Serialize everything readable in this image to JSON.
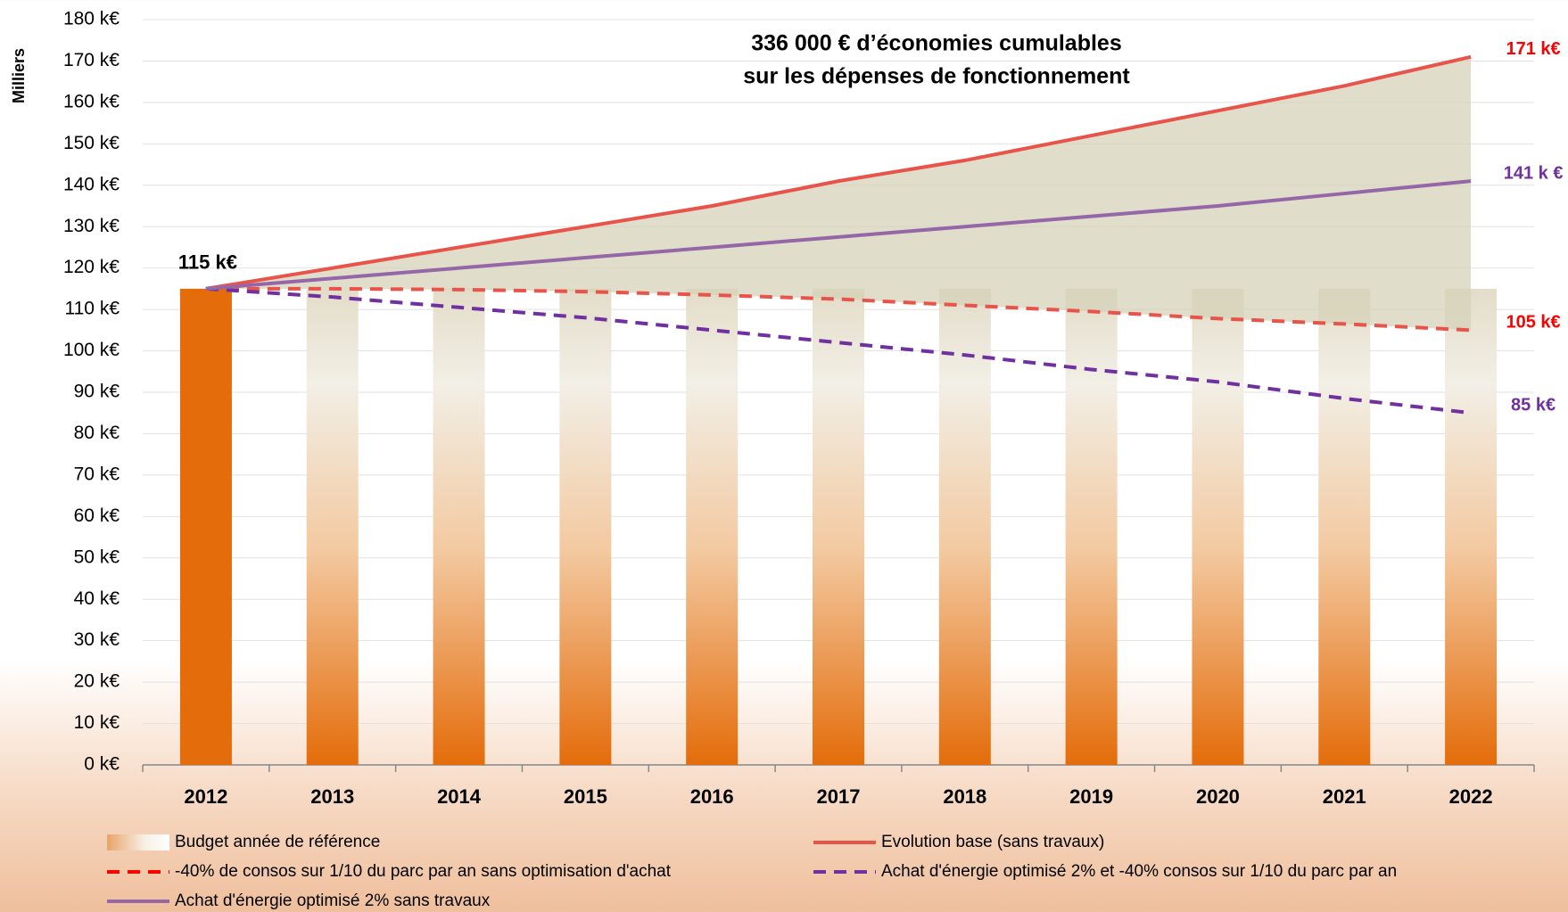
{
  "chart_data": {
    "type": "line",
    "annotations": [
      "336 000 € d’économies cumulables",
      "sur les dépenses de fonctionnement"
    ],
    "y_label": "Milliers",
    "categories": [
      "2012",
      "2013",
      "2014",
      "2015",
      "2016",
      "2017",
      "2018",
      "2019",
      "2020",
      "2021",
      "2022"
    ],
    "series": [
      {
        "name": "Budget année de référence",
        "style": "bar",
        "color": "#e46c0a",
        "values": [
          115,
          115,
          115,
          115,
          115,
          115,
          115,
          115,
          115,
          115,
          115
        ],
        "value_labels": [
          "115 k€",
          null,
          null,
          null,
          null,
          null,
          null,
          null,
          null,
          null,
          null
        ]
      },
      {
        "name": "Evolution base (sans travaux)",
        "style": "solid",
        "color": "#e8534a",
        "values": [
          115,
          120,
          125,
          130,
          135,
          141,
          146,
          152,
          158,
          164,
          171
        ],
        "value_labels": [
          null,
          null,
          null,
          null,
          null,
          null,
          null,
          null,
          null,
          null,
          "171 k€"
        ]
      },
      {
        "name": "-40% de consos sur 1/10 du parc par an sans optimisation d'achat",
        "style": "dashed",
        "color": "#e8534a",
        "values": [
          115,
          115,
          114.8,
          114.3,
          113.5,
          112.5,
          111,
          109.5,
          107.8,
          106.5,
          105
        ],
        "value_labels": [
          null,
          null,
          null,
          null,
          null,
          null,
          null,
          null,
          null,
          null,
          "105 k€"
        ]
      },
      {
        "name": "Achat d'énergie optimisé 2% et -40% consos sur 1/10 du parc par an",
        "style": "dashed",
        "color": "#7030a0",
        "values": [
          115,
          113,
          110.5,
          108,
          105,
          102,
          99,
          95.5,
          92.5,
          88.5,
          85
        ],
        "value_labels": [
          null,
          null,
          null,
          null,
          null,
          null,
          null,
          null,
          null,
          null,
          "85 k€"
        ]
      },
      {
        "name": "Achat d'énergie optimisé 2% sans travaux",
        "style": "solid",
        "color": "#9566a8",
        "values": [
          115,
          117.5,
          120,
          122.5,
          125,
          127.5,
          130,
          132.5,
          135,
          138,
          141
        ],
        "value_labels": [
          null,
          null,
          null,
          null,
          null,
          null,
          null,
          null,
          null,
          null,
          "141 k €"
        ]
      }
    ],
    "ylim": [
      0,
      180
    ],
    "yticks": [
      {
        "value": 0,
        "label": "0 k€"
      },
      {
        "value": 10,
        "label": "10 k€"
      },
      {
        "value": 20,
        "label": "20 k€"
      },
      {
        "value": 30,
        "label": "30 k€"
      },
      {
        "value": 40,
        "label": "40 k€"
      },
      {
        "value": 50,
        "label": "50 k€"
      },
      {
        "value": 60,
        "label": "60 k€"
      },
      {
        "value": 70,
        "label": "70 k€"
      },
      {
        "value": 80,
        "label": "80 k€"
      },
      {
        "value": 90,
        "label": "90 k€"
      },
      {
        "value": 100,
        "label": "100 k€"
      },
      {
        "value": 110,
        "label": "110 k€"
      },
      {
        "value": 120,
        "label": "120 k€"
      },
      {
        "value": 130,
        "label": "130 k€"
      },
      {
        "value": 140,
        "label": "140 k€"
      },
      {
        "value": 150,
        "label": "150 k€"
      },
      {
        "value": 160,
        "label": "160 k€"
      },
      {
        "value": 170,
        "label": "170 k€"
      },
      {
        "value": 180,
        "label": "180 k€"
      }
    ],
    "grid": true,
    "legend": "bottom"
  }
}
